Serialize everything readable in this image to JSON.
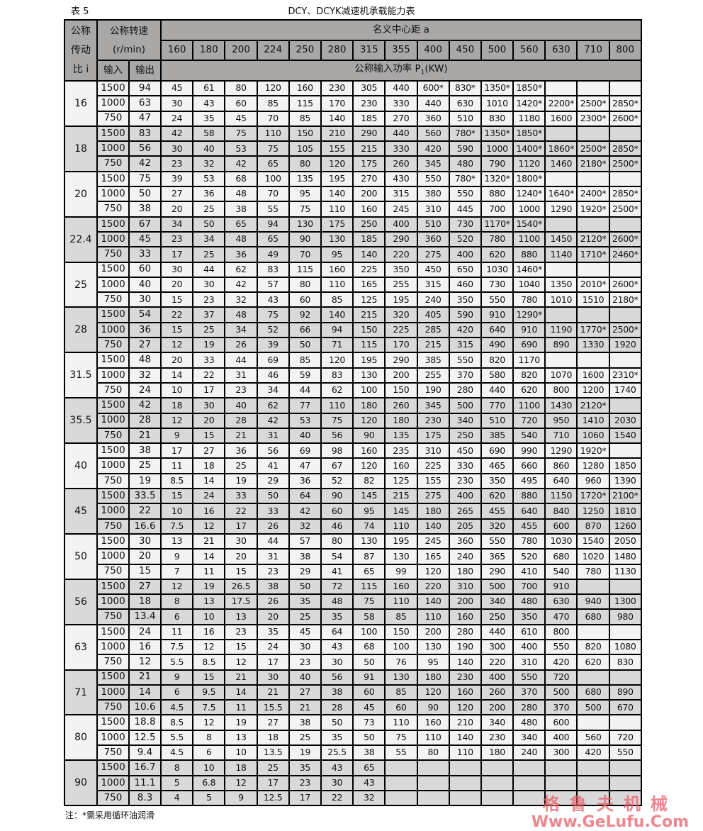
{
  "caption": {
    "label": "表 5",
    "title": "DCY、DCYK减速机承载能力表"
  },
  "header": {
    "ratio_label_lines": [
      "公称",
      "传动",
      "比 i"
    ],
    "speed_label": "公称转速",
    "speed_unit": "(r/min)",
    "center_distance_label": "名义中心距 a",
    "center_distances": [
      "160",
      "180",
      "200",
      "224",
      "250",
      "280",
      "315",
      "355",
      "400",
      "450",
      "500",
      "560",
      "630",
      "710",
      "800"
    ],
    "input_label": "输入",
    "output_label": "输出",
    "power_label": "公称输入功率 P",
    "power_sub": "1",
    "power_unit": "(KW)"
  },
  "colors": {
    "header": "#aaa7a7",
    "group_light": "#f3f3f3",
    "group_dark": "#d9d9d9",
    "watermark": "#e7606a"
  },
  "groups": [
    {
      "ratio": "16",
      "rows": [
        {
          "in": "1500",
          "out": "94",
          "p": [
            "45",
            "61",
            "80",
            "120",
            "160",
            "230",
            "305",
            "440",
            "600*",
            "830*",
            "1350*",
            "1850*",
            "",
            "",
            ""
          ]
        },
        {
          "in": "1000",
          "out": "63",
          "p": [
            "30",
            "43",
            "60",
            "85",
            "115",
            "170",
            "230",
            "330",
            "440",
            "630",
            "1010",
            "1420*",
            "2200*",
            "2500*",
            "2850*"
          ]
        },
        {
          "in": "750",
          "out": "47",
          "p": [
            "24",
            "35",
            "45",
            "70",
            "85",
            "140",
            "185",
            "270",
            "360",
            "510",
            "830",
            "1180",
            "1600",
            "2300*",
            "2600*"
          ]
        }
      ]
    },
    {
      "ratio": "18",
      "rows": [
        {
          "in": "1500",
          "out": "83",
          "p": [
            "42",
            "58",
            "75",
            "110",
            "150",
            "210",
            "290",
            "440",
            "560",
            "780*",
            "1350*",
            "1850*",
            "",
            "",
            ""
          ]
        },
        {
          "in": "1000",
          "out": "56",
          "p": [
            "30",
            "40",
            "53",
            "75",
            "105",
            "155",
            "215",
            "330",
            "420",
            "590",
            "1000",
            "1400*",
            "1860*",
            "2500*",
            "2850*"
          ]
        },
        {
          "in": "750",
          "out": "42",
          "p": [
            "23",
            "32",
            "42",
            "65",
            "80",
            "120",
            "175",
            "260",
            "345",
            "480",
            "790",
            "1120",
            "1460",
            "2180*",
            "2500*"
          ]
        }
      ]
    },
    {
      "ratio": "20",
      "rows": [
        {
          "in": "1500",
          "out": "75",
          "p": [
            "39",
            "53",
            "68",
            "100",
            "135",
            "195",
            "270",
            "430",
            "550",
            "780*",
            "1320*",
            "1800*",
            "",
            "",
            ""
          ]
        },
        {
          "in": "1000",
          "out": "50",
          "p": [
            "27",
            "36",
            "48",
            "70",
            "95",
            "140",
            "200",
            "315",
            "380",
            "550",
            "880",
            "1240*",
            "1640*",
            "2400*",
            "2850*"
          ]
        },
        {
          "in": "750",
          "out": "38",
          "p": [
            "20",
            "25",
            "38",
            "55",
            "75",
            "110",
            "160",
            "245",
            "310",
            "445",
            "700",
            "1000",
            "1290",
            "1920*",
            "2500*"
          ]
        }
      ]
    },
    {
      "ratio": "22.4",
      "rows": [
        {
          "in": "1500",
          "out": "67",
          "p": [
            "34",
            "50",
            "65",
            "94",
            "130",
            "175",
            "250",
            "400",
            "510",
            "730",
            "1170*",
            "1540*",
            "",
            "",
            ""
          ]
        },
        {
          "in": "1000",
          "out": "45",
          "p": [
            "23",
            "34",
            "48",
            "65",
            "90",
            "130",
            "185",
            "290",
            "360",
            "520",
            "780",
            "1100",
            "1450",
            "2120*",
            "2600*"
          ]
        },
        {
          "in": "750",
          "out": "33",
          "p": [
            "17",
            "25",
            "36",
            "49",
            "70",
            "95",
            "140",
            "220",
            "275",
            "400",
            "620",
            "880",
            "1140",
            "1710*",
            "2460*"
          ]
        }
      ]
    },
    {
      "ratio": "25",
      "rows": [
        {
          "in": "1500",
          "out": "60",
          "p": [
            "30",
            "44",
            "62",
            "83",
            "115",
            "160",
            "225",
            "350",
            "450",
            "650",
            "1030",
            "1460*",
            "",
            "",
            ""
          ]
        },
        {
          "in": "1000",
          "out": "40",
          "p": [
            "20",
            "30",
            "42",
            "57",
            "80",
            "110",
            "165",
            "255",
            "315",
            "460",
            "730",
            "1040",
            "1350",
            "2010*",
            "2600*"
          ]
        },
        {
          "in": "750",
          "out": "30",
          "p": [
            "15",
            "23",
            "32",
            "43",
            "60",
            "85",
            "125",
            "195",
            "240",
            "350",
            "550",
            "780",
            "1010",
            "1510",
            "2180*"
          ]
        }
      ]
    },
    {
      "ratio": "28",
      "rows": [
        {
          "in": "1500",
          "out": "54",
          "p": [
            "22",
            "37",
            "48",
            "75",
            "92",
            "140",
            "215",
            "320",
            "405",
            "590",
            "910",
            "1290*",
            "",
            "",
            ""
          ]
        },
        {
          "in": "1000",
          "out": "36",
          "p": [
            "15",
            "25",
            "34",
            "52",
            "66",
            "94",
            "150",
            "225",
            "285",
            "420",
            "640",
            "910",
            "1190",
            "1770*",
            "2500*"
          ]
        },
        {
          "in": "750",
          "out": "27",
          "p": [
            "12",
            "19",
            "26",
            "39",
            "50",
            "71",
            "115",
            "170",
            "215",
            "315",
            "490",
            "690",
            "890",
            "1330",
            "1920"
          ]
        }
      ]
    },
    {
      "ratio": "31.5",
      "rows": [
        {
          "in": "1500",
          "out": "48",
          "p": [
            "20",
            "33",
            "44",
            "69",
            "85",
            "120",
            "195",
            "290",
            "385",
            "550",
            "820",
            "1170",
            "",
            "",
            ""
          ]
        },
        {
          "in": "1000",
          "out": "32",
          "p": [
            "14",
            "22",
            "31",
            "46",
            "59",
            "83",
            "130",
            "200",
            "255",
            "370",
            "580",
            "820",
            "1070",
            "1600",
            "2310*"
          ]
        },
        {
          "in": "750",
          "out": "24",
          "p": [
            "10",
            "17",
            "23",
            "34",
            "44",
            "62",
            "100",
            "150",
            "190",
            "280",
            "440",
            "620",
            "800",
            "1200",
            "1740"
          ]
        }
      ]
    },
    {
      "ratio": "35.5",
      "rows": [
        {
          "in": "1500",
          "out": "42",
          "p": [
            "18",
            "30",
            "40",
            "62",
            "77",
            "110",
            "180",
            "260",
            "345",
            "500",
            "770",
            "1100",
            "1430",
            "2120*",
            ""
          ]
        },
        {
          "in": "1000",
          "out": "28",
          "p": [
            "12",
            "20",
            "28",
            "42",
            "53",
            "75",
            "120",
            "180",
            "230",
            "340",
            "510",
            "720",
            "950",
            "1410",
            "2030"
          ]
        },
        {
          "in": "750",
          "out": "21",
          "p": [
            "9",
            "15",
            "21",
            "31",
            "40",
            "56",
            "90",
            "135",
            "175",
            "250",
            "385",
            "540",
            "710",
            "1060",
            "1540"
          ]
        }
      ]
    },
    {
      "ratio": "40",
      "rows": [
        {
          "in": "1500",
          "out": "38",
          "p": [
            "17",
            "27",
            "36",
            "56",
            "69",
            "98",
            "160",
            "235",
            "310",
            "450",
            "690",
            "990",
            "1290",
            "1920*",
            ""
          ]
        },
        {
          "in": "1000",
          "out": "25",
          "p": [
            "11",
            "18",
            "25",
            "41",
            "47",
            "67",
            "120",
            "160",
            "225",
            "330",
            "465",
            "660",
            "860",
            "1280",
            "1850"
          ]
        },
        {
          "in": "750",
          "out": "19",
          "p": [
            "8.5",
            "14",
            "19",
            "29",
            "36",
            "52",
            "82",
            "125",
            "155",
            "230",
            "350",
            "495",
            "640",
            "960",
            "1390"
          ]
        }
      ]
    },
    {
      "ratio": "45",
      "rows": [
        {
          "in": "1500",
          "out": "33.5",
          "p": [
            "15",
            "24",
            "33",
            "50",
            "64",
            "90",
            "145",
            "215",
            "275",
            "400",
            "620",
            "880",
            "1150",
            "1720*",
            "2100*"
          ]
        },
        {
          "in": "1000",
          "out": "22",
          "p": [
            "10",
            "16",
            "22",
            "33",
            "42",
            "60",
            "95",
            "145",
            "180",
            "265",
            "455",
            "640",
            "840",
            "1250",
            "1810"
          ]
        },
        {
          "in": "750",
          "out": "16.6",
          "p": [
            "7.5",
            "12",
            "17",
            "26",
            "32",
            "46",
            "74",
            "110",
            "140",
            "205",
            "320",
            "455",
            "600",
            "870",
            "1260"
          ]
        }
      ]
    },
    {
      "ratio": "50",
      "rows": [
        {
          "in": "1500",
          "out": "30",
          "p": [
            "13",
            "21",
            "30",
            "44",
            "57",
            "80",
            "130",
            "195",
            "245",
            "360",
            "550",
            "780",
            "1030",
            "1540",
            "2050"
          ]
        },
        {
          "in": "1000",
          "out": "20",
          "p": [
            "9",
            "14",
            "20",
            "31",
            "38",
            "54",
            "87",
            "130",
            "165",
            "240",
            "365",
            "520",
            "680",
            "1020",
            "1480"
          ]
        },
        {
          "in": "750",
          "out": "15",
          "p": [
            "7",
            "11",
            "15",
            "23",
            "29",
            "41",
            "65",
            "99",
            "120",
            "180",
            "290",
            "410",
            "540",
            "780",
            "1130"
          ]
        }
      ]
    },
    {
      "ratio": "56",
      "rows": [
        {
          "in": "1500",
          "out": "27",
          "p": [
            "12",
            "19",
            "26.5",
            "38",
            "50",
            "72",
            "115",
            "160",
            "220",
            "310",
            "500",
            "700",
            "910",
            "",
            ""
          ]
        },
        {
          "in": "1000",
          "out": "18",
          "p": [
            "8",
            "13",
            "17.5",
            "26",
            "35",
            "48",
            "75",
            "110",
            "140",
            "200",
            "340",
            "480",
            "630",
            "940",
            "1300"
          ]
        },
        {
          "in": "750",
          "out": "13.4",
          "p": [
            "6",
            "10",
            "13",
            "20",
            "25",
            "35",
            "58",
            "85",
            "110",
            "160",
            "250",
            "350",
            "470",
            "680",
            "980"
          ]
        }
      ]
    },
    {
      "ratio": "63",
      "rows": [
        {
          "in": "1500",
          "out": "24",
          "p": [
            "11",
            "16",
            "23",
            "35",
            "45",
            "64",
            "100",
            "150",
            "200",
            "280",
            "440",
            "610",
            "800",
            "",
            ""
          ]
        },
        {
          "in": "1000",
          "out": "16",
          "p": [
            "7.5",
            "12",
            "15",
            "24",
            "30",
            "43",
            "68",
            "100",
            "130",
            "190",
            "300",
            "400",
            "550",
            "820",
            "1080"
          ]
        },
        {
          "in": "750",
          "out": "12",
          "p": [
            "5.5",
            "8.5",
            "12",
            "17",
            "23",
            "30",
            "50",
            "76",
            "95",
            "140",
            "220",
            "310",
            "420",
            "620",
            "830"
          ]
        }
      ]
    },
    {
      "ratio": "71",
      "rows": [
        {
          "in": "1500",
          "out": "21",
          "p": [
            "9",
            "15",
            "21",
            "30",
            "40",
            "56",
            "91",
            "130",
            "180",
            "230",
            "400",
            "550",
            "720",
            "",
            ""
          ]
        },
        {
          "in": "1000",
          "out": "14",
          "p": [
            "6",
            "9.5",
            "14",
            "21",
            "27",
            "38",
            "60",
            "85",
            "120",
            "160",
            "260",
            "370",
            "500",
            "680",
            "890"
          ]
        },
        {
          "in": "750",
          "out": "10.6",
          "p": [
            "4.5",
            "7.5",
            "11",
            "15.5",
            "21",
            "28",
            "45",
            "60",
            "90",
            "120",
            "200",
            "280",
            "370",
            "500",
            "670"
          ]
        }
      ]
    },
    {
      "ratio": "80",
      "rows": [
        {
          "in": "1500",
          "out": "18.8",
          "p": [
            "8.5",
            "12",
            "19",
            "27",
            "38",
            "50",
            "73",
            "110",
            "160",
            "210",
            "340",
            "480",
            "600",
            "",
            ""
          ]
        },
        {
          "in": "1000",
          "out": "12.5",
          "p": [
            "5.5",
            "8",
            "13",
            "18",
            "25",
            "35",
            "50",
            "75",
            "110",
            "140",
            "230",
            "340",
            "400",
            "560",
            "720"
          ]
        },
        {
          "in": "750",
          "out": "9.4",
          "p": [
            "4.5",
            "6",
            "10",
            "13.5",
            "19",
            "25.5",
            "38",
            "55",
            "80",
            "110",
            "180",
            "240",
            "300",
            "420",
            "550"
          ]
        }
      ]
    },
    {
      "ratio": "90",
      "rows": [
        {
          "in": "1500",
          "out": "16.7",
          "p": [
            "8",
            "10",
            "18",
            "25",
            "35",
            "43",
            "65",
            "",
            "",
            "",
            "",
            "",
            "",
            "",
            ""
          ]
        },
        {
          "in": "1000",
          "out": "11.1",
          "p": [
            "5",
            "6.8",
            "12",
            "17",
            "23",
            "30",
            "43",
            "",
            "",
            "",
            "",
            "",
            "",
            "",
            ""
          ]
        },
        {
          "in": "750",
          "out": "8.3",
          "p": [
            "4",
            "5",
            "9",
            "12.5",
            "17",
            "22",
            "32",
            "",
            "",
            "",
            "",
            "",
            "",
            "",
            ""
          ]
        }
      ]
    }
  ],
  "footnote": "注：*需采用循环油润滑",
  "watermark": {
    "cn": "格鲁夫机械",
    "en": "Www.GeLufu.Com"
  }
}
